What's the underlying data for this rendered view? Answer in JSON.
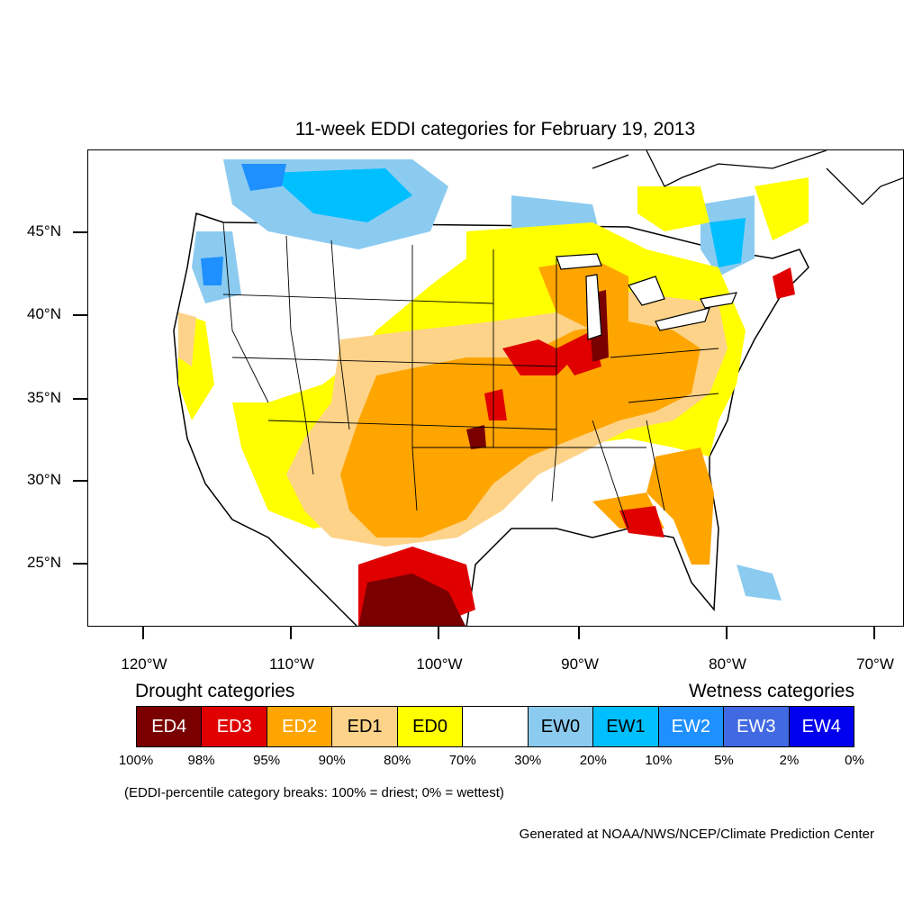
{
  "title": "11-week EDDI categories for February 19, 2013",
  "lat_labels": [
    "45°N",
    "40°N",
    "35°N",
    "30°N",
    "25°N"
  ],
  "lon_labels": [
    "120°W",
    "110°W",
    "100°W",
    "90°W",
    "80°W",
    "70°W"
  ],
  "legend": {
    "drought_heading": "Drought categories",
    "wetness_heading": "Wetness categories",
    "categories": [
      {
        "label": "ED4",
        "color": "#7a0000",
        "text_color": "#ffffff"
      },
      {
        "label": "ED3",
        "color": "#e00000",
        "text_color": "#ffffff"
      },
      {
        "label": "ED2",
        "color": "#ffa500",
        "text_color": "#ffffff"
      },
      {
        "label": "ED1",
        "color": "#fdd389",
        "text_color": "#000000"
      },
      {
        "label": "ED0",
        "color": "#ffff00",
        "text_color": "#000000"
      },
      {
        "label": "",
        "color": "#ffffff",
        "text_color": "#000000"
      },
      {
        "label": "EW0",
        "color": "#8ccbf0",
        "text_color": "#000000"
      },
      {
        "label": "EW1",
        "color": "#00bfff",
        "text_color": "#000000"
      },
      {
        "label": "EW2",
        "color": "#1e90ff",
        "text_color": "#ffffff"
      },
      {
        "label": "EW3",
        "color": "#4169e1",
        "text_color": "#ffffff"
      },
      {
        "label": "EW4",
        "color": "#0000ee",
        "text_color": "#ffffff"
      }
    ],
    "percentiles": [
      "100%",
      "98%",
      "95%",
      "90%",
      "80%",
      "70%",
      "30%",
      "20%",
      "10%",
      "5%",
      "2%",
      "0%"
    ]
  },
  "note": "(EDDI-percentile category breaks: 100% = driest; 0% = wettest)",
  "credit": "Generated at NOAA/NWS/NCEP/Climate Prediction Center"
}
